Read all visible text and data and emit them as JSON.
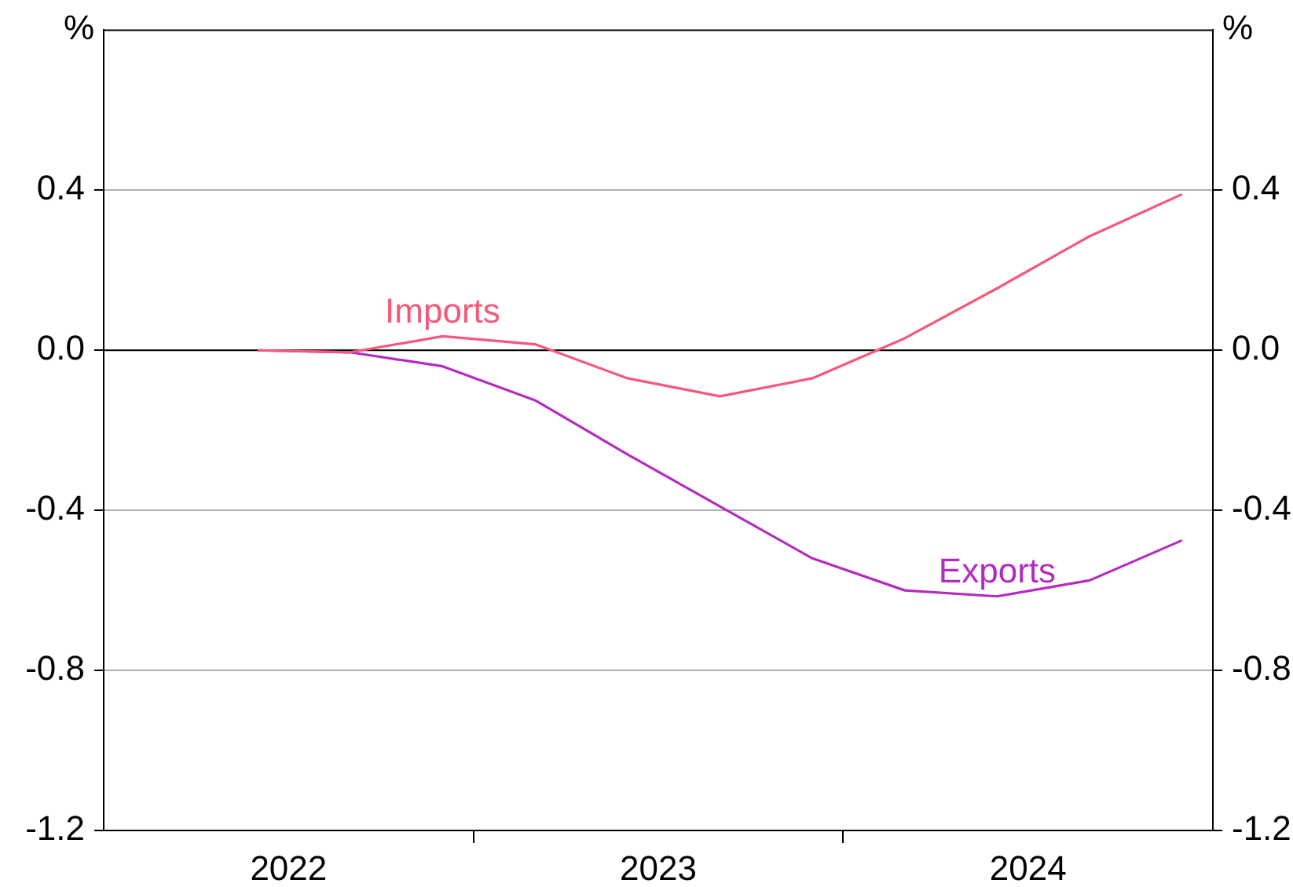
{
  "chart_data": {
    "type": "line",
    "ylabel": "%",
    "y2label": "%",
    "x": [
      "2022-06",
      "2022-09",
      "2022-12",
      "2023-03",
      "2023-06",
      "2023-09",
      "2023-12",
      "2024-03",
      "2024-06",
      "2024-09",
      "2024-12"
    ],
    "xlim": [
      "2022-01",
      "2025-01"
    ],
    "xticks": [
      {
        "value": "2022-07",
        "label": "2022"
      },
      {
        "value": "2023-01",
        "label": null
      },
      {
        "value": "2023-07",
        "label": "2023"
      },
      {
        "value": "2024-01",
        "label": null
      },
      {
        "value": "2024-07",
        "label": "2024"
      }
    ],
    "ylim": [
      -1.2,
      0.8
    ],
    "yticks": [
      -1.2,
      -0.8,
      -0.4,
      {
        "value": 0,
        "label": "0.0"
      },
      0.4
    ],
    "y2lim": [
      -1.2,
      0.8
    ],
    "y2ticks": [
      -1.2,
      -0.8,
      -0.4,
      {
        "value": 0,
        "label": "0.0"
      },
      0.4
    ],
    "series": [
      {
        "name": "Imports",
        "color": "#f4587a",
        "values": [
          0.0,
          -0.005,
          0.035,
          0.015,
          -0.07,
          -0.115,
          -0.07,
          0.03,
          0.155,
          0.285,
          0.39
        ]
      },
      {
        "name": "Exports",
        "color": "#b52bc0",
        "values": [
          0.0,
          -0.005,
          -0.04,
          -0.125,
          -0.26,
          -0.39,
          -0.52,
          -0.6,
          -0.615,
          -0.575,
          -0.475
        ]
      }
    ],
    "ref_lines": [
      {
        "axis": "y",
        "value": 0,
        "color": "#000000"
      }
    ],
    "grid": "y",
    "legend": false,
    "marker": "none",
    "line_style": "solid"
  }
}
